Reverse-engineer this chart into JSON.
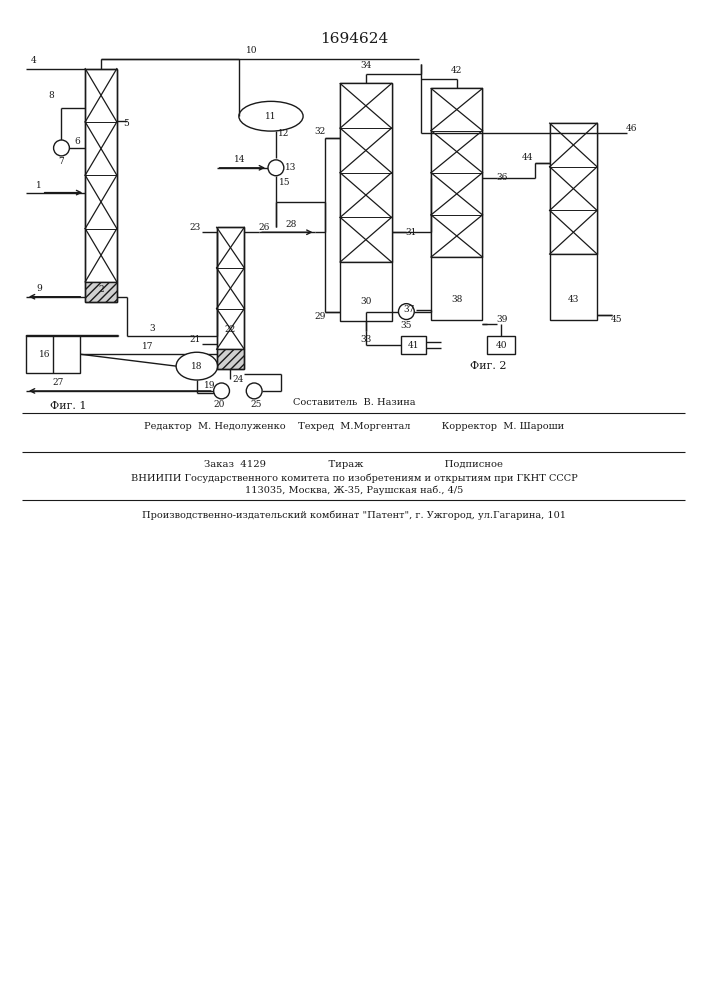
{
  "title": "1694624",
  "fig1_label": "Фиг. 1",
  "fig2_label": "Фиг. 2",
  "bg_color": "#ffffff",
  "line_color": "#1a1a1a",
  "footer_line1": "Составитель  В. Назина",
  "footer_line2": "Редактор  М. Недолуженко    Техред  М.Моргентал          Корректор  М. Шароши",
  "footer_line3": "Заказ  4129                    Тираж                          Подписное",
  "footer_line4": "ВНИИПИ Государственного комитета по изобретениям и открытиям при ГКНТ СССР",
  "footer_line5": "113035, Москва, Ж-35, Раушская наб., 4/5",
  "footer_line6": "Производственно-издательский комбинат \"Патент\", г. Ужгород, ул.Гагарина, 101"
}
